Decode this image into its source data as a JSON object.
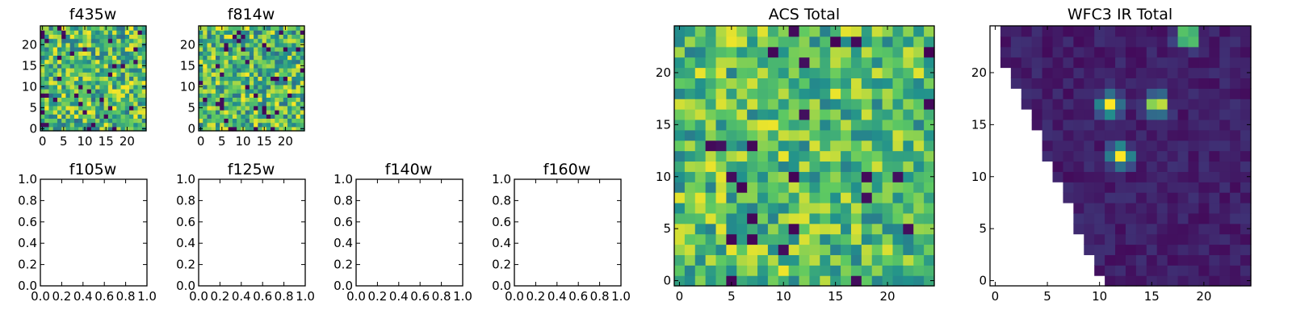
{
  "chart_data": [
    {
      "type": "heatmap",
      "title": "f435w",
      "colormap": "viridis",
      "grid": false,
      "xlim": [
        -0.5,
        24.5
      ],
      "ylim": [
        -0.5,
        24.5
      ],
      "xticks": [
        "0",
        "5",
        "10",
        "15",
        "20"
      ],
      "yticks": [
        "0",
        "5",
        "10",
        "15",
        "20"
      ],
      "values": "25x25 pixel grid of roughly uniform noise, normalized intensity 0-1"
    },
    {
      "type": "heatmap",
      "title": "f814w",
      "colormap": "viridis",
      "grid": false,
      "xlim": [
        -0.5,
        24.5
      ],
      "ylim": [
        -0.5,
        24.5
      ],
      "xticks": [
        "0",
        "5",
        "10",
        "15",
        "20"
      ],
      "yticks": [
        "0",
        "5",
        "10",
        "15",
        "20"
      ],
      "values": "25x25 pixel grid of roughly uniform noise, normalized intensity 0-1"
    },
    {
      "type": "heatmap",
      "title": "f105w",
      "empty": true,
      "xlim": [
        0,
        1
      ],
      "ylim": [
        0,
        1
      ],
      "xticks": [
        "0.0",
        "0.2",
        "0.4",
        "0.6",
        "0.8",
        "1.0"
      ],
      "yticks": [
        "0.0",
        "0.2",
        "0.4",
        "0.6",
        "0.8",
        "1.0"
      ]
    },
    {
      "type": "heatmap",
      "title": "f125w",
      "empty": true,
      "xlim": [
        0,
        1
      ],
      "ylim": [
        0,
        1
      ],
      "xticks": [
        "0.0",
        "0.2",
        "0.4",
        "0.6",
        "0.8",
        "1.0"
      ],
      "yticks": [
        "0.0",
        "0.2",
        "0.4",
        "0.6",
        "0.8",
        "1.0"
      ]
    },
    {
      "type": "heatmap",
      "title": "f140w",
      "empty": true,
      "xlim": [
        0,
        1
      ],
      "ylim": [
        0,
        1
      ],
      "xticks": [
        "0.0",
        "0.2",
        "0.4",
        "0.6",
        "0.8",
        "1.0"
      ],
      "yticks": [
        "0.0",
        "0.2",
        "0.4",
        "0.6",
        "0.8",
        "1.0"
      ]
    },
    {
      "type": "heatmap",
      "title": "f160w",
      "empty": true,
      "xlim": [
        0,
        1
      ],
      "ylim": [
        0,
        1
      ],
      "xticks": [
        "0.0",
        "0.2",
        "0.4",
        "0.6",
        "0.8",
        "1.0"
      ],
      "yticks": [
        "0.0",
        "0.2",
        "0.4",
        "0.6",
        "0.8",
        "1.0"
      ]
    },
    {
      "type": "heatmap",
      "title": "ACS Total",
      "colormap": "viridis",
      "grid": false,
      "xlim": [
        -0.5,
        24.5
      ],
      "ylim": [
        -0.5,
        24.5
      ],
      "xticks": [
        "0",
        "5",
        "10",
        "15",
        "20"
      ],
      "yticks": [
        "0",
        "5",
        "10",
        "15",
        "20"
      ],
      "values": "25x25 pixel grid of roughly uniform noise, mostly mid-to-high intensity"
    },
    {
      "type": "heatmap",
      "title": "WFC3 IR Total",
      "colormap": "viridis",
      "grid": false,
      "xlim": [
        -0.5,
        24.5
      ],
      "ylim": [
        -0.5,
        24.5
      ],
      "xticks": [
        "0",
        "5",
        "10",
        "15",
        "20"
      ],
      "yticks": [
        "0",
        "5",
        "10",
        "15",
        "20"
      ],
      "masked_region": "lower-left triangle (no data, white)",
      "sources": [
        {
          "x": 11,
          "y": 17,
          "peak": 1.0
        },
        {
          "x": 15.5,
          "y": 17,
          "peak": 1.0
        },
        {
          "x": 12,
          "y": 12,
          "peak": 1.0
        },
        {
          "x": 18.5,
          "y": 23.5,
          "peak": 1.0
        }
      ],
      "values": "25x25 pixel grid of low background with four bright compact sources"
    }
  ],
  "colors": {
    "viridis": [
      "#440154",
      "#3b528b",
      "#21918c",
      "#5ec962",
      "#fde725"
    ],
    "background": "#ffffff",
    "axis": "#000000"
  }
}
